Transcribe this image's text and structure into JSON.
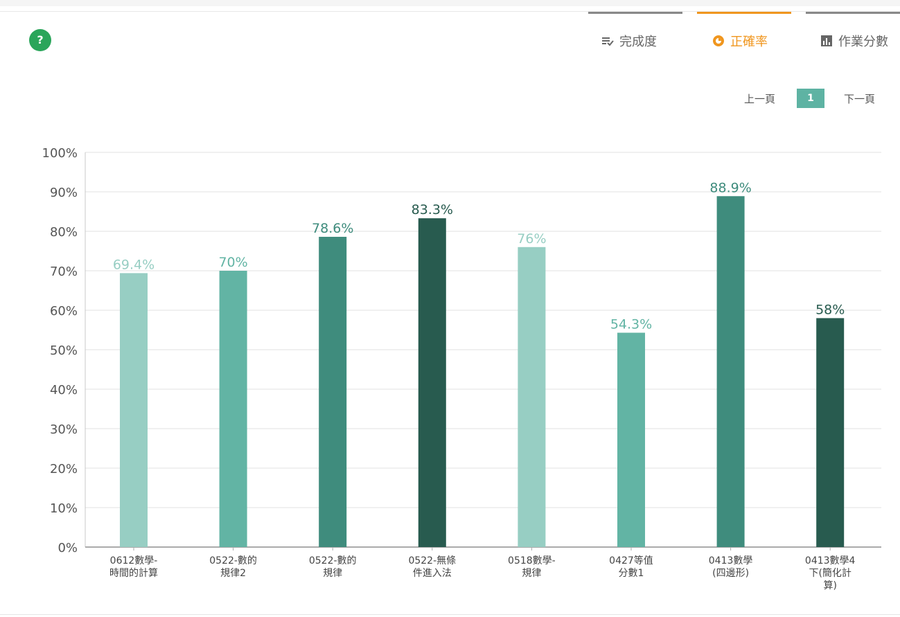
{
  "help": {
    "label": "?"
  },
  "tabs": [
    {
      "label": "完成度",
      "icon": "checklist-icon",
      "active": false
    },
    {
      "label": "正確率",
      "icon": "pie-icon",
      "active": true
    },
    {
      "label": "作業分數",
      "icon": "bar-chart-icon",
      "active": false
    }
  ],
  "pager": {
    "prev": "上一頁",
    "page": "1",
    "next": "下一頁"
  },
  "colors": {
    "accent": "#f0961e",
    "page_bg": "#5eb3a3"
  },
  "chart_data": {
    "type": "bar",
    "categories": [
      [
        "0612數學-",
        "時間的計算"
      ],
      [
        "0522-數的",
        "規律2"
      ],
      [
        "0522-數的",
        "規律"
      ],
      [
        "0522-無條",
        "件進入法"
      ],
      [
        "0518數學-",
        "規律"
      ],
      [
        "0427等值",
        "分數1"
      ],
      [
        "0413數學",
        "(四邊形)"
      ],
      [
        "0413數學4",
        "下(簡化計",
        "算)"
      ]
    ],
    "values": [
      69.4,
      70,
      78.6,
      83.3,
      76,
      54.3,
      88.9,
      58
    ],
    "data_labels": [
      "69.4%",
      "70%",
      "78.6%",
      "83.3%",
      "76%",
      "54.3%",
      "88.9%",
      "58%"
    ],
    "bar_colors": [
      "#97cec3",
      "#62b4a4",
      "#3f8c7d",
      "#285b4f",
      "#97cec3",
      "#62b4a4",
      "#3f8c7d",
      "#285b4f"
    ],
    "ylim": [
      0,
      100
    ],
    "yticks": [
      "0%",
      "10%",
      "20%",
      "30%",
      "40%",
      "50%",
      "60%",
      "70%",
      "80%",
      "90%",
      "100%"
    ],
    "grid": true
  }
}
